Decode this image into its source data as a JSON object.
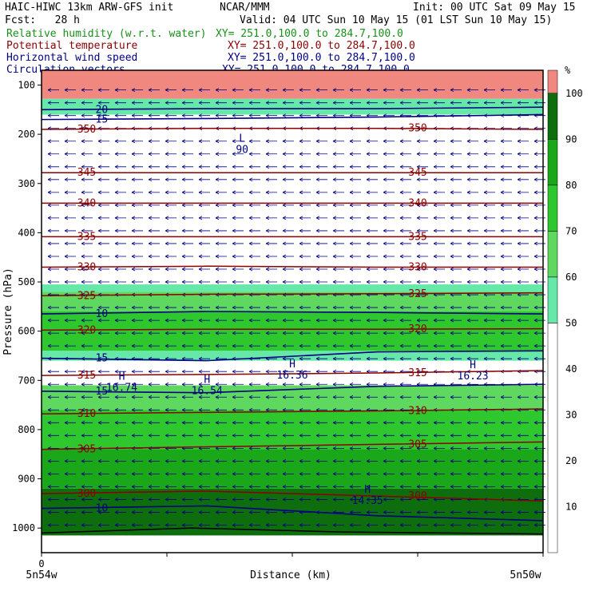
{
  "header": {
    "title": "HAIC-HIWC 13km ARW-GFS init",
    "org": "NCAR/MMM",
    "init": "Init: 00 UTC Sat 09 May 15",
    "fcst": "Fcst:   28 h",
    "valid": "Valid: 04 UTC Sun 10 May 15 (01 LST Sun 10 May 15)",
    "fields": [
      {
        "name": "Relative humidity (w.r.t. water)",
        "xy": "XY= 251.0,100.0 to 284.7,100.0",
        "color": "#1a8f1a"
      },
      {
        "name": "Potential temperature",
        "xy": "XY= 251.0,100.0 to 284.7,100.0",
        "color": "#8b0000"
      },
      {
        "name": "Horizontal wind speed",
        "xy": "XY= 251.0,100.0 to 284.7,100.0",
        "color": "#000080"
      },
      {
        "name": "Circulation vectors",
        "xy": "XY= 251.0,100.0 to 284.7,100.0",
        "color": "#000080"
      }
    ]
  },
  "chart_data": {
    "type": "heatmap",
    "xlabel": "Distance (km)",
    "ylabel": "Pressure (hPa)",
    "x_tick_zero": "0",
    "x_left_label": "5n54w",
    "x_right_label": "5n50w",
    "y_ticks": [
      100,
      200,
      300,
      400,
      500,
      600,
      700,
      800,
      900,
      1000
    ],
    "y_range": [
      70,
      1050
    ],
    "colorbar": {
      "unit": "%",
      "ticks": [
        10,
        20,
        30,
        40,
        50,
        60,
        70,
        80,
        90,
        100
      ],
      "bins": [
        {
          "from": 0,
          "to": 50,
          "color": "#ffffff"
        },
        {
          "from": 50,
          "to": 60,
          "color": "#66e8a8"
        },
        {
          "from": 60,
          "to": 70,
          "color": "#5ed85e"
        },
        {
          "from": 70,
          "to": 80,
          "color": "#2ec82e"
        },
        {
          "from": 80,
          "to": 90,
          "color": "#1aa81a"
        },
        {
          "from": 90,
          "to": 100,
          "color": "#0e6e0e"
        },
        {
          "from": 100,
          "to": 105,
          "color": "#f08880"
        }
      ]
    },
    "theta_contours": [
      {
        "label": "350",
        "p": [
          190,
          188,
          188,
          190
        ]
      },
      {
        "label": "345",
        "p": [
          278,
          278,
          278,
          278
        ]
      },
      {
        "label": "340",
        "p": [
          340,
          340,
          340,
          340
        ]
      },
      {
        "label": "335",
        "p": [
          408,
          408,
          408,
          408
        ]
      },
      {
        "label": "330",
        "p": [
          470,
          468,
          470,
          470
        ]
      },
      {
        "label": "325",
        "p": [
          528,
          525,
          524,
          522
        ]
      },
      {
        "label": "320",
        "p": [
          598,
          596,
          596,
          595
        ]
      },
      {
        "label": "315",
        "p": [
          690,
          688,
          685,
          680
        ]
      },
      {
        "label": "310",
        "p": [
          768,
          765,
          762,
          758
        ]
      },
      {
        "label": "305",
        "p": [
          840,
          835,
          830,
          825
        ]
      },
      {
        "label": "300",
        "p": [
          930,
          925,
          935,
          945
        ]
      }
    ],
    "wind_contours": [
      {
        "label": "10",
        "p": [
          565,
          560,
          562,
          565
        ]
      },
      {
        "label": "15",
        "p": [
          655,
          660,
          642,
          640
        ]
      },
      {
        "label": "15",
        "p": [
          722,
          725,
          712,
          708
        ]
      },
      {
        "label": "10",
        "p": [
          960,
          955,
          975,
          985
        ]
      },
      {
        "label": "15",
        "p": [
          170,
          168,
          165,
          160
        ]
      },
      {
        "label": "20",
        "p": [
          150,
          148,
          148,
          145
        ]
      }
    ],
    "wind_maxima": [
      {
        "marker": "H",
        "value": "16.74",
        "x": 0.16,
        "p": 705
      },
      {
        "marker": "H",
        "value": "16.54",
        "x": 0.33,
        "p": 712
      },
      {
        "marker": "H",
        "value": "16.36",
        "x": 0.5,
        "p": 680
      },
      {
        "marker": "H",
        "value": "16.23",
        "x": 0.86,
        "p": 682
      },
      {
        "marker": "H",
        "value": "14.35",
        "x": 0.65,
        "p": 935
      },
      {
        "marker": "L",
        "value": "90",
        "x": 0.4,
        "p": 222
      }
    ]
  }
}
